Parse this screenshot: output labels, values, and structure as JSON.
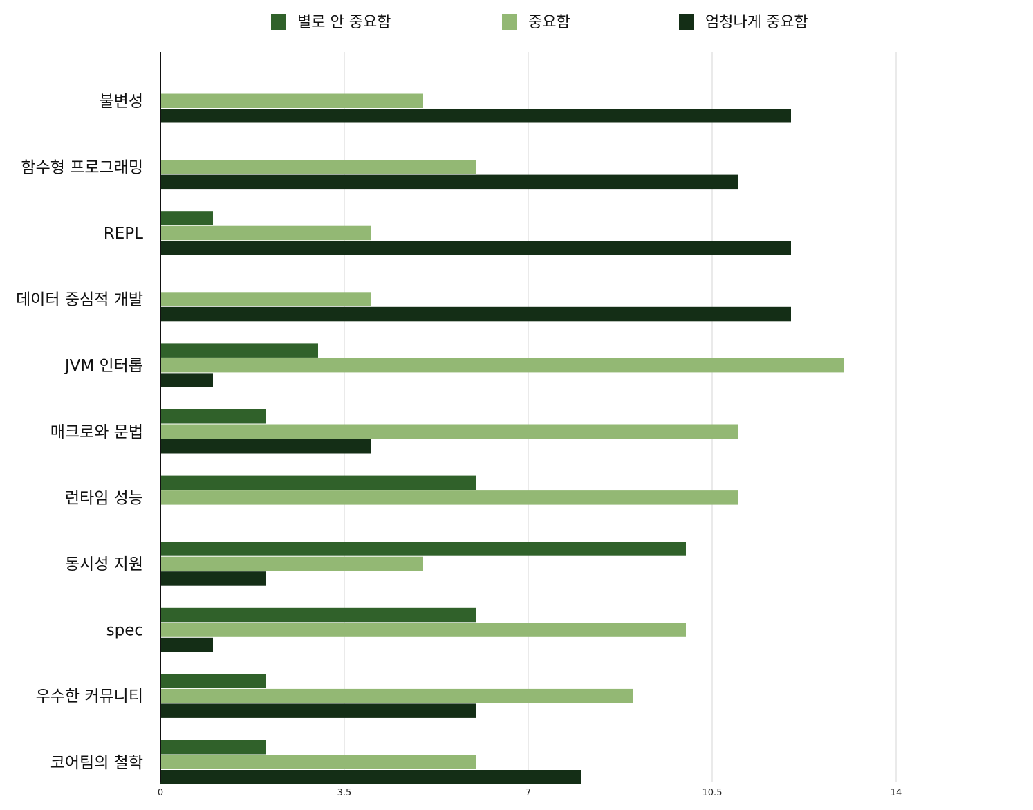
{
  "chart_data": {
    "type": "bar",
    "orientation": "horizontal",
    "categories": [
      "불변성",
      "함수형 프로그래밍",
      "REPL",
      "데이터 중심적 개발",
      "JVM 인터롭",
      "매크로와 문법",
      "런타임 성능",
      "동시성 지원",
      "spec",
      "우수한 커뮤니티",
      "코어팀의 철학"
    ],
    "series": [
      {
        "name": "별로 안 중요함",
        "color": "#30612a",
        "values": [
          0,
          0,
          1,
          0,
          3,
          2,
          6,
          10,
          6,
          2,
          2
        ]
      },
      {
        "name": "중요함",
        "color": "#93b874",
        "values": [
          5,
          6,
          4,
          4,
          13,
          11,
          11,
          5,
          10,
          9,
          6
        ]
      },
      {
        "name": "엄청나게 중요함",
        "color": "#142e16",
        "values": [
          12,
          11,
          12,
          12,
          1,
          4,
          0,
          2,
          1,
          6,
          8
        ]
      }
    ],
    "xticks": [
      "0",
      "3.5",
      "7",
      "10.5",
      "14"
    ],
    "xlim": [
      0,
      14
    ],
    "grid": true,
    "legend": "top"
  }
}
